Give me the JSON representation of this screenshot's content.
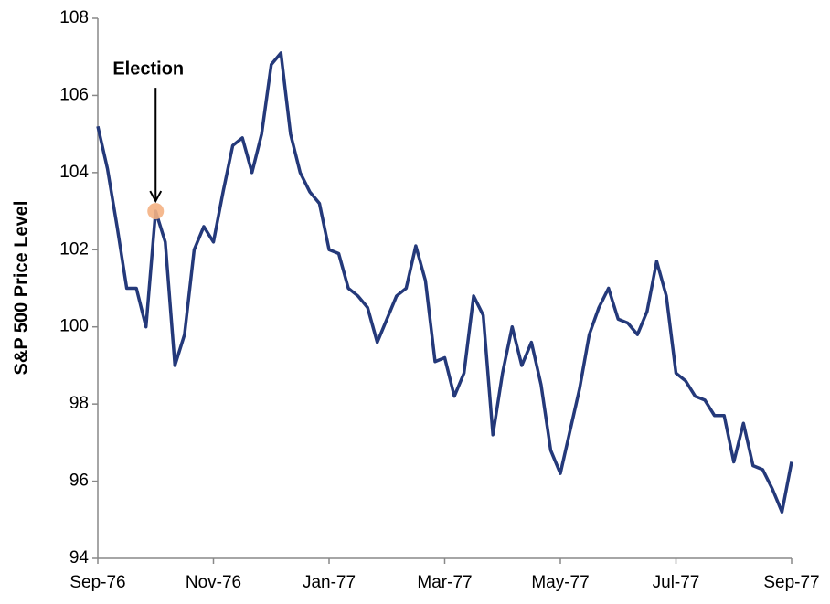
{
  "chart_data": {
    "type": "line",
    "y_label": "S&P 500 Price Level",
    "categories": [
      "Sep-76",
      null,
      null,
      null,
      null,
      null,
      null,
      null,
      null,
      null,
      null,
      null,
      "Nov-76",
      null,
      null,
      null,
      null,
      null,
      null,
      null,
      null,
      null,
      null,
      null,
      "Jan-77",
      null,
      null,
      null,
      null,
      null,
      null,
      null,
      null,
      null,
      null,
      null,
      "Mar-77",
      null,
      null,
      null,
      null,
      null,
      null,
      null,
      null,
      null,
      null,
      null,
      "May-77",
      null,
      null,
      null,
      null,
      null,
      null,
      null,
      null,
      null,
      null,
      null,
      "Jul-77",
      null,
      null,
      null,
      null,
      null,
      null,
      null,
      null,
      null,
      null,
      null,
      "Sep-77"
    ],
    "series": [
      {
        "name": "S&P 500",
        "color": "#24397a",
        "values": [
          105.2,
          104.1,
          102.6,
          101.0,
          101.0,
          100.0,
          103.0,
          102.2,
          99.0,
          99.8,
          102.0,
          102.6,
          102.2,
          103.5,
          104.7,
          104.9,
          104.0,
          105.0,
          106.8,
          107.1,
          105.0,
          104.0,
          103.5,
          103.2,
          102.0,
          101.9,
          101.0,
          100.8,
          100.5,
          99.6,
          100.2,
          100.8,
          101.0,
          102.1,
          101.2,
          99.1,
          99.2,
          98.2,
          98.8,
          100.8,
          100.3,
          97.2,
          98.8,
          100.0,
          99.0,
          99.6,
          98.5,
          96.8,
          96.2,
          97.3,
          98.4,
          99.8,
          100.5,
          101.0,
          100.2,
          100.1,
          99.8,
          100.4,
          101.7,
          100.8,
          98.8,
          98.6,
          98.2,
          98.1,
          97.7,
          97.7,
          96.5,
          97.5,
          96.4,
          96.3,
          95.8,
          95.2,
          96.5
        ]
      }
    ],
    "annotations": [
      {
        "text": "Election",
        "at": 6
      }
    ],
    "highlight_color": "#f4b183",
    "ylim": [
      94,
      108
    ],
    "yticks": [
      94,
      96,
      98,
      100,
      102,
      104,
      106,
      108
    ],
    "grid": false
  }
}
